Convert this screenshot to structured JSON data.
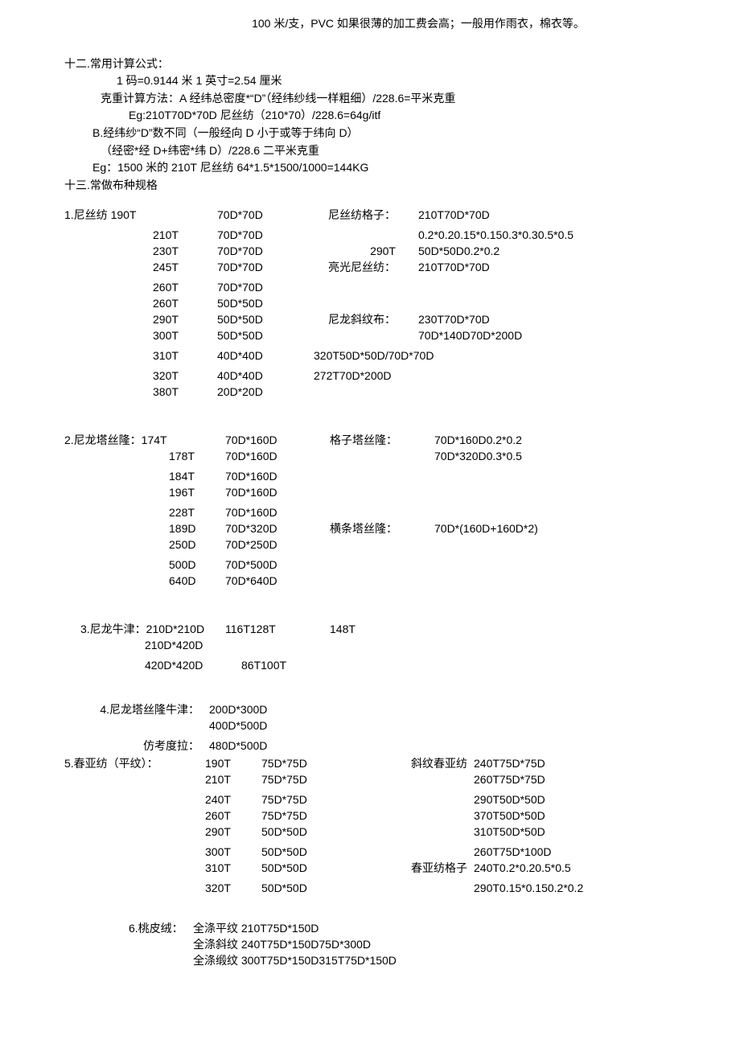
{
  "top_note": "100 米/支，PVC 如果很薄的加工费会高；一般用作雨衣，棉衣等。",
  "sec12_title": "十二.常用计算公式：",
  "formula_lines": [
    "1 码=0.9144 米 1 英寸=2.54 厘米",
    "克重计算方法：A 经纬总密度*“D”（经纬纱线一样粗细）/228.6=平米克重",
    "Eg:210T70D*70D 尼丝纺（210*70）/228.6=64g/itf",
    "B.经纬纱“D”数不同（一般经向 D 小于或等于纬向 D）",
    "（经密*经 D+纬密*纬 D）/228.6 二平米克重",
    "Eg：1500 米的 210T 尼丝纺 64*1.5*1500/1000=144KG"
  ],
  "sec13_title": "十三.常做布种规格",
  "s1": {
    "title": "1.尼丝纺 190T",
    "rows": [
      {
        "a": "",
        "b": "",
        "c": "70D*70D",
        "d": "尼丝纺格子：",
        "e": "210T70D*70D"
      },
      {
        "gap": true
      },
      {
        "a": "",
        "b": "210T",
        "c": "70D*70D",
        "d": "",
        "e": "0.2*0.20.15*0.150.3*0.30.5*0.5"
      },
      {
        "a": "",
        "b": "230T",
        "c": "70D*70D",
        "d": "290T",
        "e": "50D*50D0.2*0.2"
      },
      {
        "a": "",
        "b": "245T",
        "c": "70D*70D",
        "d": "亮光尼丝纺：",
        "e": "210T70D*70D"
      },
      {
        "gap": true
      },
      {
        "a": "",
        "b": "260T",
        "c": "70D*70D",
        "d": "",
        "e": ""
      },
      {
        "a": "",
        "b": "260T",
        "c": "50D*50D",
        "d": "",
        "e": ""
      },
      {
        "a": "",
        "b": "290T",
        "c": "50D*50D",
        "d": "尼龙斜纹布：",
        "e": "230T70D*70D"
      },
      {
        "a": "",
        "b": "300T",
        "c": "50D*50D",
        "d": "",
        "e": "70D*140D70D*200D"
      },
      {
        "gap": true
      },
      {
        "a": "",
        "b": "310T",
        "c": "40D*40D",
        "d": "",
        "e": "320T50D*50D/70D*70D",
        "de_merge": true
      },
      {
        "gap": true
      },
      {
        "a": "",
        "b": "320T",
        "c": "40D*40D",
        "d": "",
        "e": "272T70D*200D",
        "de_merge": true
      },
      {
        "a": "",
        "b": "380T",
        "c": "20D*20D",
        "d": "",
        "e": ""
      }
    ]
  },
  "s2": {
    "title": "2.尼龙塔丝隆：174T",
    "rows": [
      {
        "a": "",
        "b": "",
        "c": "70D*160D",
        "d": "格子塔丝隆：",
        "e": "70D*160D0.2*0.2",
        "first": true
      },
      {
        "a": "",
        "b": "178T",
        "c": "70D*160D",
        "d": "",
        "e": "70D*320D0.3*0.5"
      },
      {
        "gap": true
      },
      {
        "a": "",
        "b": "184T",
        "c": "70D*160D",
        "d": "",
        "e": ""
      },
      {
        "a": "",
        "b": "196T",
        "c": "70D*160D",
        "d": "",
        "e": ""
      },
      {
        "gap": true
      },
      {
        "a": "",
        "b": "228T",
        "c": "70D*160D",
        "d": "",
        "e": ""
      },
      {
        "a": "",
        "b": "189D",
        "c": "70D*320D",
        "d": "横条塔丝隆：",
        "e": "70D*(160D+160D*2)"
      },
      {
        "a": "",
        "b": "250D",
        "c": "70D*250D",
        "d": "",
        "e": ""
      },
      {
        "gap": true
      },
      {
        "a": "",
        "b": "500D",
        "c": "70D*500D",
        "d": "",
        "e": ""
      },
      {
        "a": "",
        "b": "640D",
        "c": "70D*640D",
        "d": "",
        "e": ""
      }
    ]
  },
  "s3": {
    "rows": [
      {
        "a": "3.尼龙牛津：210D*210D",
        "b": "116T128T",
        "c": "148T"
      },
      {
        "a": "210D*420D",
        "b": "",
        "c": "",
        "ind": true
      },
      {
        "a": "420D*420D",
        "b": "86T100T",
        "c": "",
        "ind": true
      }
    ]
  },
  "s45": {
    "block_a": {
      "label": "4.尼龙塔丝隆牛津：",
      "rows": [
        {
          "c2": "200D*300D"
        },
        {
          "c2": "400D*500D"
        }
      ]
    },
    "fangkao": {
      "label": "仿考度拉：",
      "val": "480D*500D"
    },
    "block_b": {
      "label": "5.春亚纺（平纹）：",
      "rows": [
        {
          "b": "190T",
          "c": "75D*75D",
          "d": "斜纹春亚纺",
          "e": "240T75D*75D"
        },
        {
          "b": "210T",
          "c": "75D*75D",
          "d": "",
          "e": "260T75D*75D"
        },
        {
          "gap": true
        },
        {
          "b": "240T",
          "c": "75D*75D",
          "d": "",
          "e": "290T50D*50D"
        },
        {
          "b": "260T",
          "c": "75D*75D",
          "d": "",
          "e": "370T50D*50D"
        },
        {
          "b": "290T",
          "c": "50D*50D",
          "d": "",
          "e": "310T50D*50D"
        },
        {
          "gap": true
        },
        {
          "b": "300T",
          "c": "50D*50D",
          "d": "",
          "e": "260T75D*100D"
        },
        {
          "b": "310T",
          "c": "50D*50D",
          "d": "春亚纺格子",
          "e": "240T0.2*0.20.5*0.5"
        },
        {
          "gap": true
        },
        {
          "b": "320T",
          "c": "50D*50D",
          "d": "",
          "e": "290T0.15*0.150.2*0.2"
        }
      ]
    }
  },
  "s6": {
    "label": "6.桃皮绒：",
    "rows": [
      "全涤平纹 210T75D*150D",
      "全涤斜纹 240T75D*150D75D*300D",
      "全涤缎纹 300T75D*150D315T75D*150D"
    ]
  }
}
